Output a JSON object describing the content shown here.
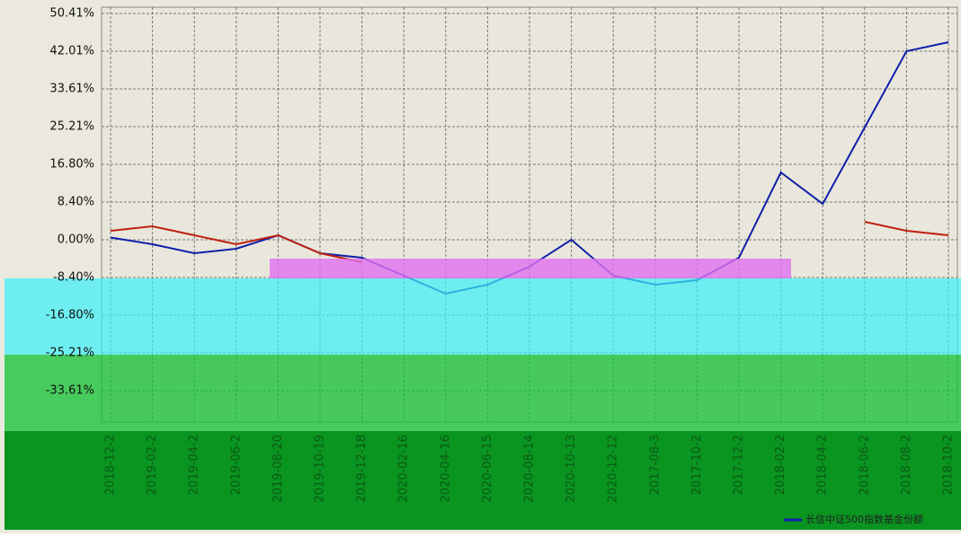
{
  "chart_data": {
    "type": "line",
    "categories": [
      "2018-12-2",
      "2019-02-2",
      "2019-04-2",
      "2019-06-2",
      "2019-08-20",
      "2019-10-19",
      "2019-12-18",
      "2020-02-16",
      "2020-04-16",
      "2020-06-15",
      "2020-08-14",
      "2020-10-13",
      "2020-12-12",
      "2017-08-3",
      "2017-10-2",
      "2017-12-2",
      "2018-02-2",
      "2018-04-2",
      "2018-06-2",
      "2018-08-2",
      "2018-10-2"
    ],
    "series": [
      {
        "name": "长信中证500指数基金份额",
        "color": "#1020a8",
        "values": [
          0.5,
          -1,
          -3,
          -2,
          1,
          -3,
          -4,
          -8,
          -12,
          -10,
          -6,
          0,
          -8,
          -10,
          -9,
          -4,
          15,
          8,
          25,
          42,
          44
        ]
      },
      {
        "color": "#c02010",
        "values": [
          2,
          3,
          1,
          -1,
          1,
          -3,
          -5,
          null,
          null,
          null,
          null,
          null,
          null,
          null,
          null,
          null,
          null,
          null,
          4,
          2,
          1
        ]
      }
    ],
    "ylim": [
      -40.6,
      51.8
    ],
    "yticks": [
      {
        "value": 50.41,
        "label": "50.41%"
      },
      {
        "value": 42.01,
        "label": "42.01%"
      },
      {
        "value": 33.61,
        "label": "33.61%"
      },
      {
        "value": 25.21,
        "label": "25.21%"
      },
      {
        "value": 16.8,
        "label": "16.80%"
      },
      {
        "value": 8.4,
        "label": "8.40%"
      },
      {
        "value": 0,
        "label": "0.00%"
      },
      {
        "value": -8.4,
        "label": "-8.40%"
      },
      {
        "value": -16.8,
        "label": "-16.80%"
      },
      {
        "value": -25.21,
        "label": "-25.21%"
      },
      {
        "value": -33.61,
        "label": "-33.61%"
      }
    ],
    "grid": true
  }
}
